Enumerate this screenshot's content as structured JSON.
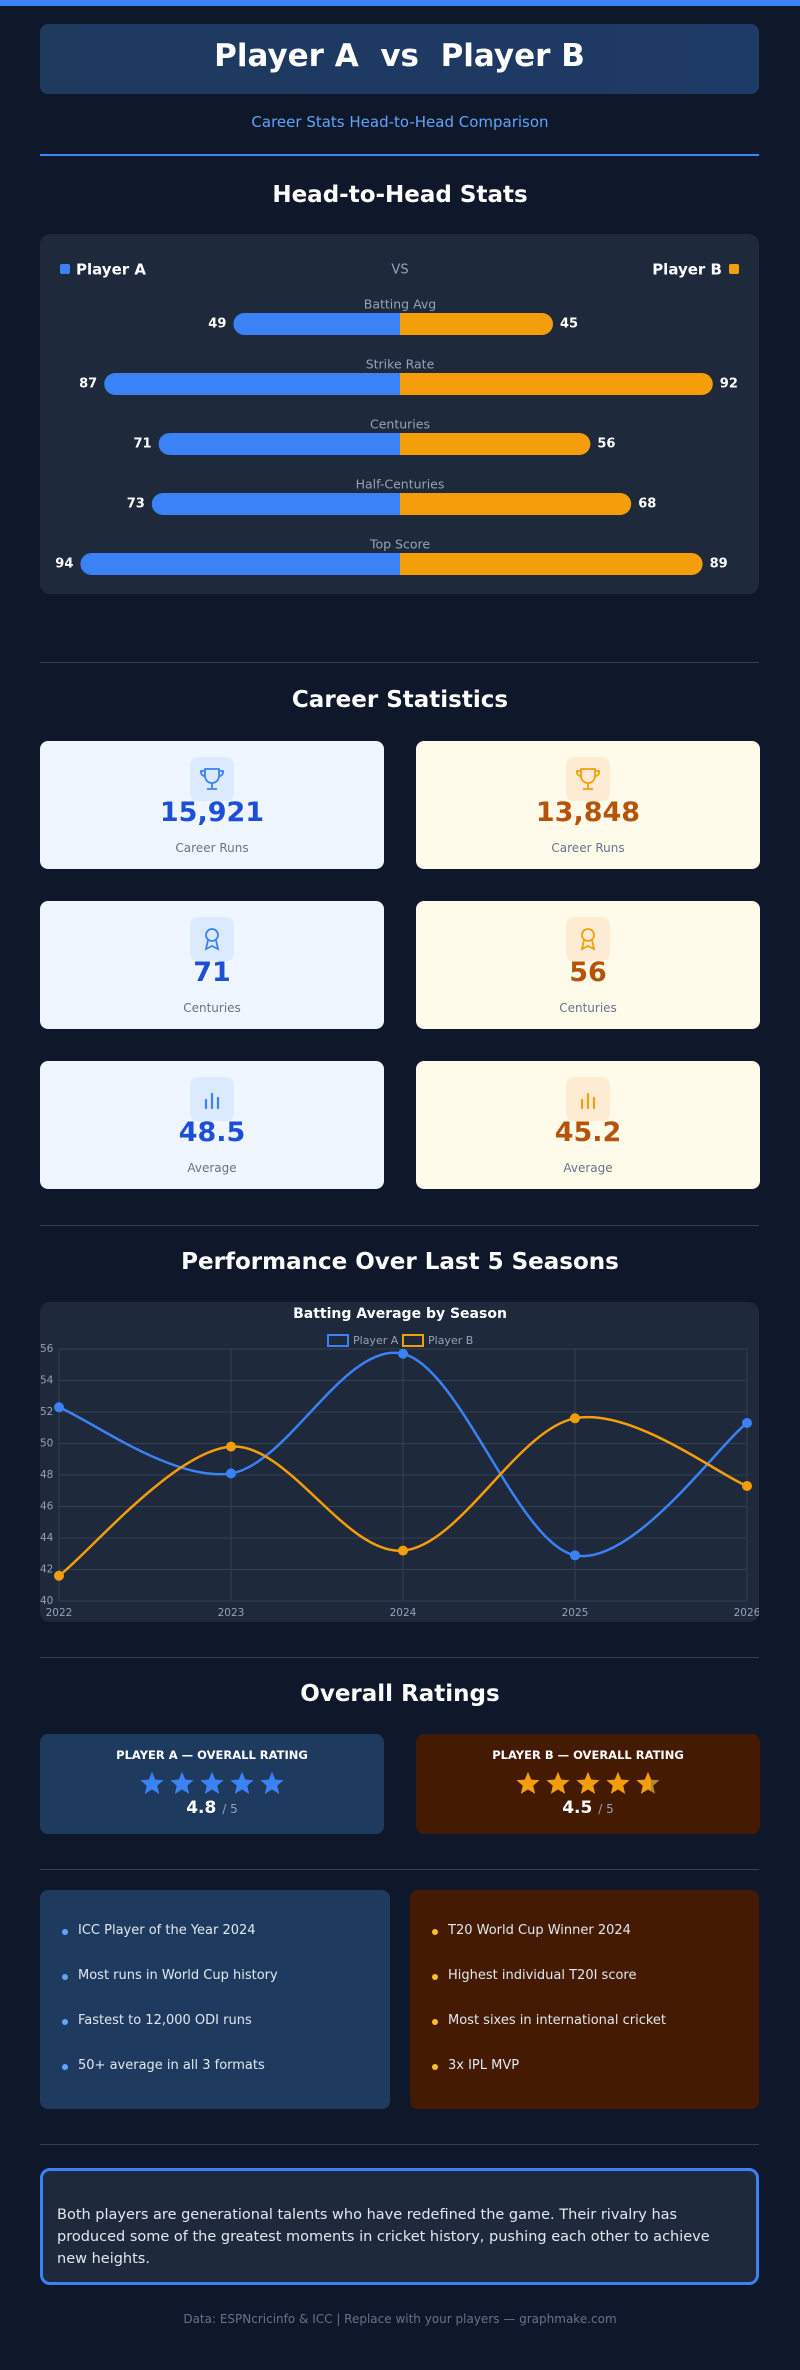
{
  "header": {
    "title": "Player A  vs  Player B",
    "subtitle": "Career Stats Head-to-Head Comparison"
  },
  "sections": [
    "Head-to-Head Stats",
    "Career Statistics",
    "Performance Over Last 5 Seasons",
    "Overall Ratings"
  ],
  "chart_data": [
    {
      "type": "butterfly",
      "categories": [
        "Batting Avg",
        "Strike Rate",
        "Centuries",
        "Half-Centuries",
        "Top Score"
      ],
      "center_label": "VS",
      "series": [
        {
          "name": "Player A",
          "color": "#3b82f6",
          "values": [
            49,
            87,
            71,
            73,
            94
          ]
        },
        {
          "name": "Player B",
          "color": "#f59e0b",
          "values": [
            45,
            92,
            56,
            68,
            89
          ]
        }
      ]
    },
    {
      "type": "line",
      "title": "Batting Average by Season",
      "x": [
        2022,
        2023,
        2024,
        2025,
        2026
      ],
      "xlim": [
        2022,
        2026
      ],
      "xticks": [
        2022,
        2023,
        2024,
        2025,
        2026
      ],
      "ylim": [
        40,
        56
      ],
      "yticks": [
        40,
        42,
        44,
        46,
        48,
        50,
        52,
        54,
        56
      ],
      "grid": true,
      "series": [
        {
          "name": "Player A",
          "color": "#3b82f6",
          "values": [
            52.3,
            48.1,
            55.7,
            42.9,
            51.3
          ]
        },
        {
          "name": "Player B",
          "color": "#f59e0b",
          "values": [
            41.6,
            49.8,
            43.2,
            51.6,
            47.3
          ]
        }
      ]
    }
  ],
  "cards": [
    [
      {
        "value": "15,921",
        "label": "Career Runs"
      },
      {
        "value": "13,848",
        "label": "Career Runs"
      }
    ],
    [
      {
        "value": "71",
        "label": "Centuries"
      },
      {
        "value": "56",
        "label": "Centuries"
      }
    ],
    [
      {
        "value": "48.5",
        "label": "Average"
      },
      {
        "value": "45.2",
        "label": "Average"
      }
    ]
  ],
  "ratings": [
    {
      "title": "PLAYER A — OVERALL RATING",
      "value": 4.8,
      "out_of": "/ 5"
    },
    {
      "title": "PLAYER B — OVERALL RATING",
      "value": 4.5,
      "out_of": "/ 5"
    }
  ],
  "achievements": [
    [
      "ICC Player of the Year 2024",
      "Most runs in World Cup history",
      "Fastest to 12,000 ODI runs",
      "50+ average in all 3 formats"
    ],
    [
      "T20 World Cup Winner 2024",
      "Highest individual T20I score",
      "Most sixes in international cricket",
      "3x IPL MVP"
    ]
  ],
  "summary": "Both players are generational talents who have redefined the game. Their rivalry has produced some of the greatest moments in cricket history, pushing each other to achieve new heights.",
  "footer": "Data: ESPNcricinfo & ICC | Replace with your players — graphmake.com"
}
